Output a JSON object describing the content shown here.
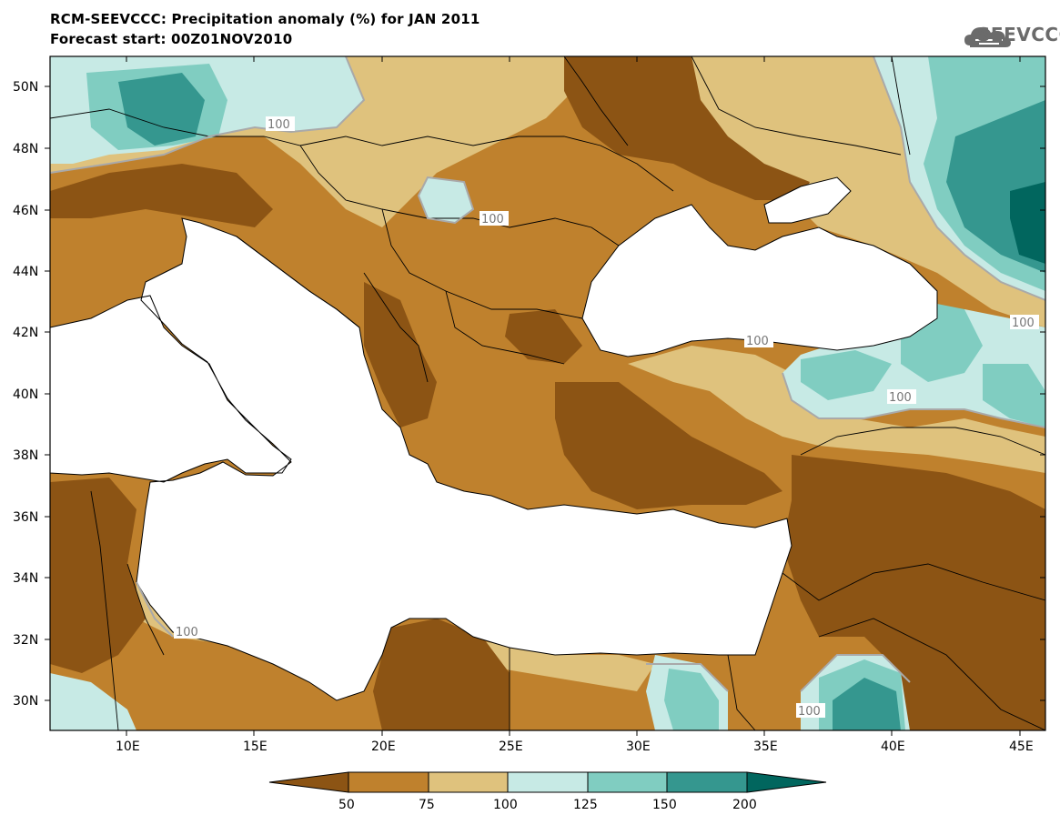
{
  "title": {
    "line1": "RCM-SEEVCCC: Precipitation anomaly (%) for JAN 2011",
    "line2": "Forecast start: 00Z01NOV2010"
  },
  "brand": {
    "name": "SEEVCCC",
    "icon": "cloud-logo-icon"
  },
  "map": {
    "lat_labels": [
      "50N",
      "48N",
      "46N",
      "44N",
      "42N",
      "40N",
      "38N",
      "36N",
      "34N",
      "32N",
      "30N"
    ],
    "lon_labels": [
      "10E",
      "15E",
      "20E",
      "25E",
      "30E",
      "35E",
      "40E",
      "45E"
    ],
    "contour_labels": [
      "100",
      "100",
      "100",
      "100",
      "100",
      "100",
      "100"
    ]
  },
  "legend": {
    "ticks": [
      "50",
      "75",
      "100",
      "125",
      "150",
      "200"
    ],
    "colors": [
      "#8c5414",
      "#bf812d",
      "#dfc27d",
      "#c7eae5",
      "#80cdc1",
      "#35978f",
      "#01665e"
    ]
  },
  "palette": {
    "very_dry": "#8c5414",
    "dry": "#bf812d",
    "slightly_dry": "#dfc27d",
    "slightly_wet": "#c7eae5",
    "wet": "#80cdc1",
    "very_wet": "#35978f",
    "extreme_wet": "#01665e",
    "contour": "#a9a9a9",
    "sea": "#ffffff"
  }
}
